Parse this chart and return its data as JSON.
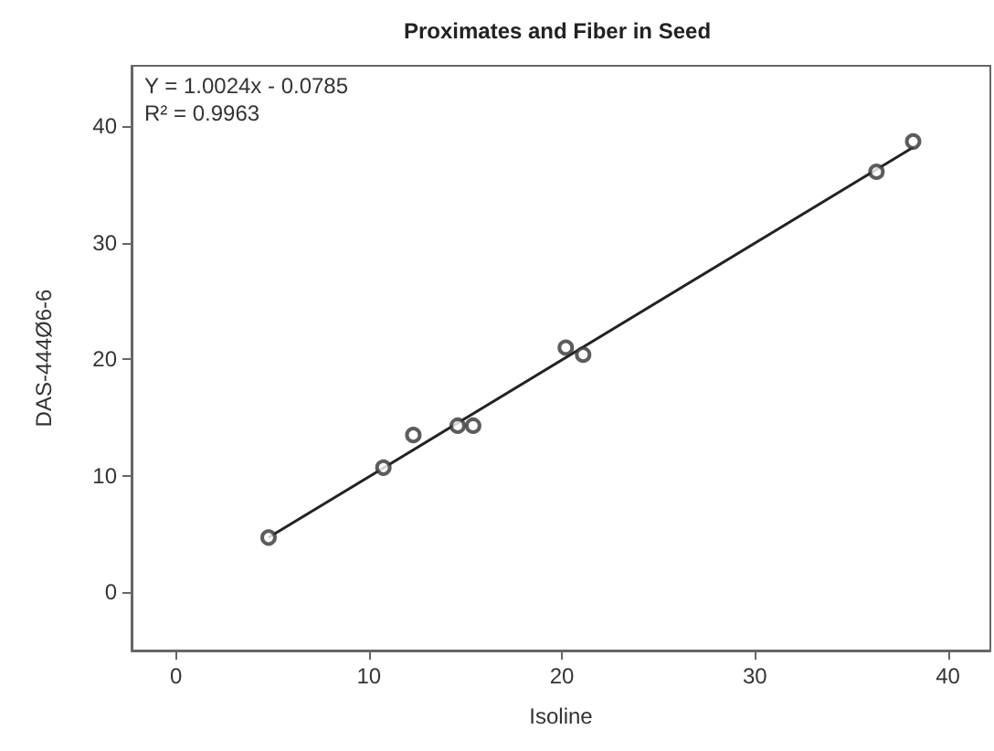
{
  "chart_data": {
    "type": "scatter",
    "title": "Proximates and Fiber in Seed",
    "xlabel": "Isoline",
    "ylabel": "DAS-444Ø6-6",
    "annotations": [
      "Y = 1.0024x - 0.0785",
      "R² = 0.9963"
    ],
    "series": [
      {
        "color": "#333333",
        "x": [
          4.8,
          10.75,
          12.3,
          14.6,
          15.4,
          20.2,
          21.1,
          36.3,
          38.2
        ],
        "values": [
          4.7,
          10.7,
          13.5,
          14.3,
          14.3,
          21.0,
          20.4,
          36.1,
          38.7
        ]
      },
      {
        "type": "line",
        "marker": "none",
        "color": "#222222",
        "x": [
          4.8,
          38.2
        ],
        "values": [
          4.7,
          38.2
        ]
      }
    ],
    "xlim": [
      -2.3,
      42.2
    ],
    "ylim": [
      -5,
      45.2
    ],
    "xticks": [
      0,
      10,
      20,
      30,
      40
    ],
    "yticks": [
      0,
      10,
      20,
      30,
      40
    ],
    "grid": false,
    "marker": "circle"
  }
}
